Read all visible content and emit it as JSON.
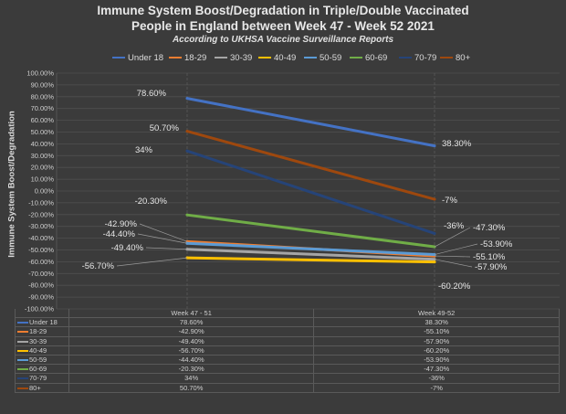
{
  "chart_data": {
    "type": "line",
    "title_lines": [
      "Immune System Boost/Degradation in Triple/Double Vaccinated",
      "People in England between Week 47 - Week 52 2021"
    ],
    "subtitle": "According to UKHSA Vaccine Surveillance Reports",
    "ylabel": "Immune System Boost/Degradation",
    "xlabel": "",
    "ylim": [
      -100,
      100
    ],
    "yticks": [
      "100.00%",
      "90.00%",
      "80.00%",
      "70.00%",
      "60.00%",
      "50.00%",
      "40.00%",
      "30.00%",
      "20.00%",
      "10.00%",
      "0.00%",
      "-10.00%",
      "-20.00%",
      "-30.00%",
      "-40.00%",
      "-50.00%",
      "-60.00%",
      "-70.00%",
      "-80.00%",
      "-90.00%",
      "-100.00%"
    ],
    "categories": [
      "Week 47 - 51",
      "Week 49-52"
    ],
    "grid": true,
    "legend_position": "top",
    "series": [
      {
        "name": "Under 18",
        "color": "#4472c4",
        "values": [
          78.6,
          38.3
        ],
        "labels": [
          "78.60%",
          "38.30%"
        ],
        "table": [
          "78.60%",
          "38.30%"
        ]
      },
      {
        "name": "18-29",
        "color": "#ed7d31",
        "values": [
          -42.9,
          -55.1
        ],
        "labels": [
          "-42.90%",
          "-55.10%"
        ],
        "table": [
          "-42.90%",
          "-55.10%"
        ]
      },
      {
        "name": "30-39",
        "color": "#a5a5a5",
        "values": [
          -49.4,
          -57.9
        ],
        "labels": [
          "-49.40%",
          "-57.90%"
        ],
        "table": [
          "-49.40%",
          "-57.90%"
        ]
      },
      {
        "name": "40-49",
        "color": "#ffc000",
        "values": [
          -56.7,
          -60.2
        ],
        "labels": [
          "-56.70%",
          "-60.20%"
        ],
        "table": [
          "-56.70%",
          "-60.20%"
        ]
      },
      {
        "name": "50-59",
        "color": "#5b9bd5",
        "values": [
          -44.4,
          -53.9
        ],
        "labels": [
          "-44.40%",
          "-53.90%"
        ],
        "table": [
          "-44.40%",
          "-53.90%"
        ]
      },
      {
        "name": "60-69",
        "color": "#70ad47",
        "values": [
          -20.3,
          -47.3
        ],
        "labels": [
          "-20.30%",
          "-47.30%"
        ],
        "table": [
          "-20.30%",
          "-47.30%"
        ]
      },
      {
        "name": "70-79",
        "color": "#264478",
        "values": [
          34,
          -36
        ],
        "labels": [
          "34%",
          "-36%"
        ],
        "table": [
          "34%",
          "-36%"
        ]
      },
      {
        "name": "80+",
        "color": "#9e480e",
        "values": [
          50.7,
          -7
        ],
        "labels": [
          "50.70%",
          "-7%"
        ],
        "table": [
          "50.70%",
          "-7%"
        ]
      }
    ]
  }
}
